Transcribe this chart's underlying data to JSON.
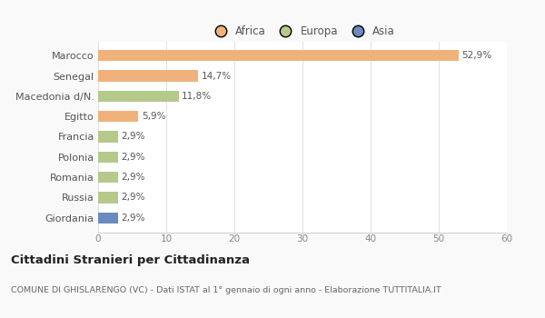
{
  "categories": [
    "Marocco",
    "Senegal",
    "Macedonia d/N.",
    "Egitto",
    "Francia",
    "Polonia",
    "Romania",
    "Russia",
    "Giordania"
  ],
  "values": [
    52.9,
    14.7,
    11.8,
    5.9,
    2.9,
    2.9,
    2.9,
    2.9,
    2.9
  ],
  "colors": [
    "#f0b27a",
    "#f0b27a",
    "#b5c98a",
    "#f0b27a",
    "#b5c98a",
    "#b5c98a",
    "#b5c98a",
    "#b5c98a",
    "#6b8bbf"
  ],
  "labels": [
    "52,9%",
    "14,7%",
    "11,8%",
    "5,9%",
    "2,9%",
    "2,9%",
    "2,9%",
    "2,9%",
    "2,9%"
  ],
  "legend_labels": [
    "Africa",
    "Europa",
    "Asia"
  ],
  "legend_colors": [
    "#f0b27a",
    "#b5c98a",
    "#6b8bbf"
  ],
  "title": "Cittadini Stranieri per Cittadinanza",
  "subtitle": "COMUNE DI GHISLARENGO (VC) - Dati ISTAT al 1° gennaio di ogni anno - Elaborazione TUTTITALIA.IT",
  "xlim": [
    0,
    60
  ],
  "xticks": [
    0,
    10,
    20,
    30,
    40,
    50,
    60
  ],
  "background_color": "#f9f9f9",
  "bar_background": "#ffffff",
  "bar_height": 0.55,
  "label_fontsize": 7.5,
  "ytick_fontsize": 8,
  "xtick_fontsize": 7.5,
  "legend_fontsize": 8.5,
  "title_fontsize": 9.5,
  "subtitle_fontsize": 6.8
}
